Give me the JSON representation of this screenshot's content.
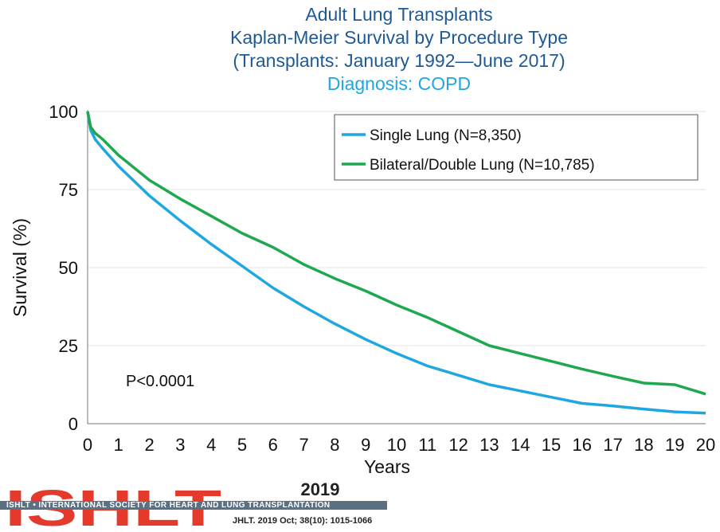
{
  "title": {
    "line1": "Adult Lung Transplants",
    "line2": "Kaplan-Meier Survival by Procedure Type",
    "line3": "(Transplants: January 1992—June 2017)",
    "line4": "Diagnosis: COPD"
  },
  "chart_data": {
    "type": "line",
    "xlabel": "Years",
    "ylabel": "Survival (%)",
    "xlim": [
      0,
      20
    ],
    "ylim": [
      0,
      100
    ],
    "x_ticks": [
      0,
      1,
      2,
      3,
      4,
      5,
      6,
      7,
      8,
      9,
      10,
      11,
      12,
      13,
      14,
      15,
      16,
      17,
      18,
      19,
      20
    ],
    "y_ticks": [
      0,
      25,
      50,
      75,
      100
    ],
    "grid": "horizontal",
    "legend_position": "top-right",
    "annotation": "P<0.0001",
    "series": [
      {
        "name": "Single Lung (N=8,350)",
        "color": "#1ea7e1",
        "points": [
          [
            0,
            100
          ],
          [
            0.1,
            94
          ],
          [
            0.25,
            91
          ],
          [
            0.5,
            88
          ],
          [
            1,
            82.5
          ],
          [
            2,
            73
          ],
          [
            3,
            65
          ],
          [
            4,
            57.5
          ],
          [
            5,
            50.5
          ],
          [
            6,
            43.5
          ],
          [
            7,
            37.5
          ],
          [
            8,
            32
          ],
          [
            9,
            27
          ],
          [
            10,
            22.5
          ],
          [
            11,
            18.5
          ],
          [
            12,
            15.5
          ],
          [
            13,
            12.5
          ],
          [
            14,
            10.5
          ],
          [
            15,
            8.5
          ],
          [
            16,
            6.5
          ],
          [
            17,
            5.7
          ],
          [
            18,
            4.7
          ],
          [
            19,
            3.8
          ],
          [
            20,
            3.4
          ]
        ]
      },
      {
        "name": "Bilateral/Double Lung (N=10,785)",
        "color": "#1fa84f",
        "points": [
          [
            0,
            100
          ],
          [
            0.1,
            95
          ],
          [
            0.25,
            93
          ],
          [
            0.5,
            91
          ],
          [
            1,
            86
          ],
          [
            2,
            78
          ],
          [
            3,
            72
          ],
          [
            4,
            66.5
          ],
          [
            5,
            61
          ],
          [
            6,
            56.5
          ],
          [
            7,
            51
          ],
          [
            8,
            46.5
          ],
          [
            9,
            42.5
          ],
          [
            10,
            38
          ],
          [
            11,
            34
          ],
          [
            12,
            29.5
          ],
          [
            13,
            25
          ],
          [
            14,
            22.5
          ],
          [
            15,
            20
          ],
          [
            16,
            17.5
          ],
          [
            17,
            15.2
          ],
          [
            18,
            13
          ],
          [
            19,
            12.5
          ],
          [
            20,
            9.5
          ]
        ]
      }
    ]
  },
  "footer": {
    "logo_text": "ISHLT",
    "year": "2019",
    "band_text": "ISHLT • INTERNATIONAL SOCIETY FOR HEART AND LUNG TRANSPLANTATION",
    "citation": "JHLT. 2019 Oct; 38(10): 1015-1066",
    "logo_color": "#e43a2b"
  }
}
